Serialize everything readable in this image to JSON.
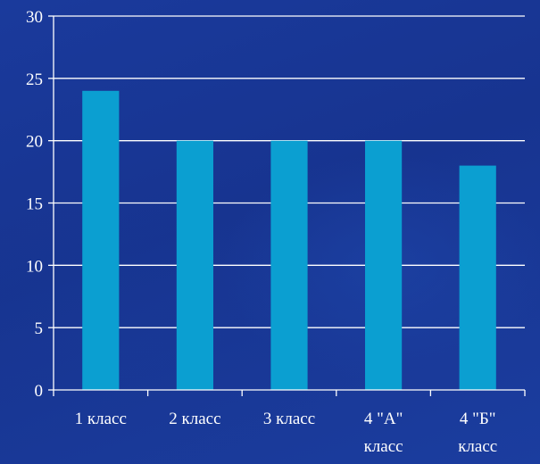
{
  "chart_data": {
    "type": "bar",
    "categories": [
      "1 класс",
      "2 класс",
      "3 класс",
      "4 \"А\" класс",
      "4 \"Б\" класс"
    ],
    "category_lines": [
      [
        "1 класс"
      ],
      [
        "2 класс"
      ],
      [
        "3 класс"
      ],
      [
        "4 \"А\"",
        "класс"
      ],
      [
        "4 \"Б\"",
        "класс"
      ]
    ],
    "values": [
      24,
      20,
      20,
      20,
      18
    ],
    "title": "",
    "xlabel": "",
    "ylabel": "",
    "ylim": [
      0,
      30
    ],
    "yticks": [
      0,
      5,
      10,
      15,
      20,
      25,
      30
    ],
    "grid": true,
    "legend": "none",
    "colors": {
      "bar": "#0b9fd1",
      "grid": "#ffffff",
      "axis": "#ffffff",
      "text": "#ffffff",
      "background": "#19389a"
    }
  }
}
